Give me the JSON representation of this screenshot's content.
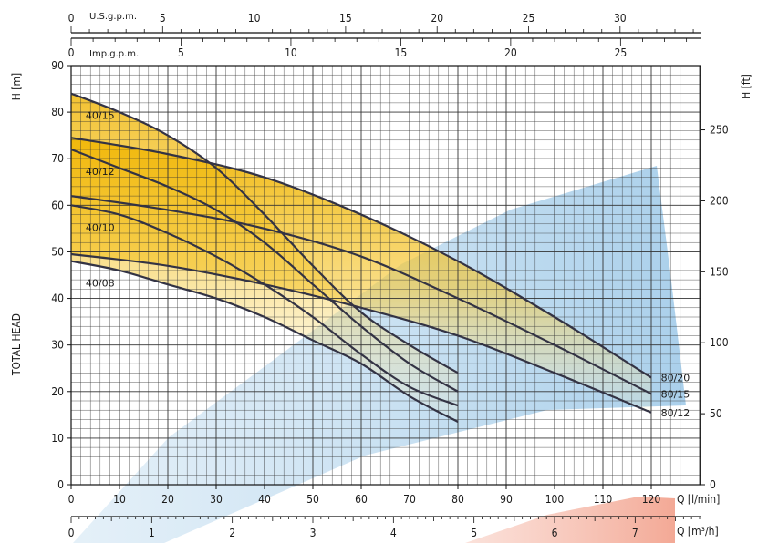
{
  "chart_data": {
    "type": "line",
    "x_axis": {
      "label": "Q [l/min]",
      "ticks": [
        0,
        10,
        20,
        30,
        40,
        50,
        60,
        70,
        80,
        90,
        100,
        110,
        120
      ],
      "range": [
        0,
        130
      ]
    },
    "x_axis_m3h": {
      "label": "Q [m³/h]",
      "ticks": [
        0,
        1,
        2,
        3,
        4,
        5,
        6,
        7
      ]
    },
    "top_axis_us": {
      "label": "U.S.g.p.m.",
      "ticks": [
        0,
        5,
        10,
        15,
        20,
        25,
        30
      ]
    },
    "top_axis_imp": {
      "label": "Imp.g.p.m.",
      "ticks": [
        0,
        5,
        10,
        15,
        20,
        25
      ]
    },
    "y_axis_left": {
      "label": "H [m]",
      "ticks": [
        0,
        10,
        20,
        30,
        40,
        50,
        60,
        70,
        80,
        90
      ],
      "range": [
        0,
        90
      ]
    },
    "y_axis_right": {
      "label": "H [ft]",
      "ticks": [
        0,
        50,
        100,
        150,
        200,
        250
      ]
    },
    "side_label": "TOTAL HEAD",
    "grid": true,
    "series": [
      {
        "name": "40/15",
        "x": [
          0,
          10,
          20,
          30,
          40,
          50,
          60,
          70,
          80
        ],
        "y": [
          84,
          80,
          75,
          68,
          58,
          47,
          37,
          30,
          24
        ]
      },
      {
        "name": "40/12",
        "x": [
          0,
          10,
          20,
          30,
          40,
          50,
          60,
          70,
          80
        ],
        "y": [
          72,
          68,
          64,
          59,
          52,
          43,
          34,
          26,
          20
        ]
      },
      {
        "name": "40/10",
        "x": [
          0,
          10,
          20,
          30,
          40,
          50,
          60,
          70,
          80
        ],
        "y": [
          60,
          58,
          54,
          49,
          43,
          36,
          28,
          21,
          17
        ]
      },
      {
        "name": "40/08",
        "x": [
          0,
          10,
          20,
          30,
          40,
          50,
          60,
          70,
          80
        ],
        "y": [
          48,
          46,
          43,
          40,
          36,
          31,
          26,
          19,
          13.5
        ]
      },
      {
        "name": "80/20",
        "x": [
          0,
          20,
          40,
          60,
          80,
          100,
          120
        ],
        "y": [
          74.5,
          71,
          66,
          58,
          48,
          36,
          23
        ]
      },
      {
        "name": "80/15",
        "x": [
          0,
          20,
          40,
          60,
          80,
          100,
          120
        ],
        "y": [
          62,
          59,
          55,
          49,
          40,
          30,
          19.5
        ]
      },
      {
        "name": "80/12",
        "x": [
          0,
          20,
          40,
          60,
          80,
          100,
          120
        ],
        "y": [
          49.5,
          47,
          43,
          38,
          32,
          24,
          15.5
        ]
      }
    ]
  },
  "colors": {
    "grid": "#333333",
    "curve": "#333344",
    "fill_yellow": "#f0b400",
    "fill_blue": "#9fc8e6",
    "fill_red": "#f2a590"
  }
}
